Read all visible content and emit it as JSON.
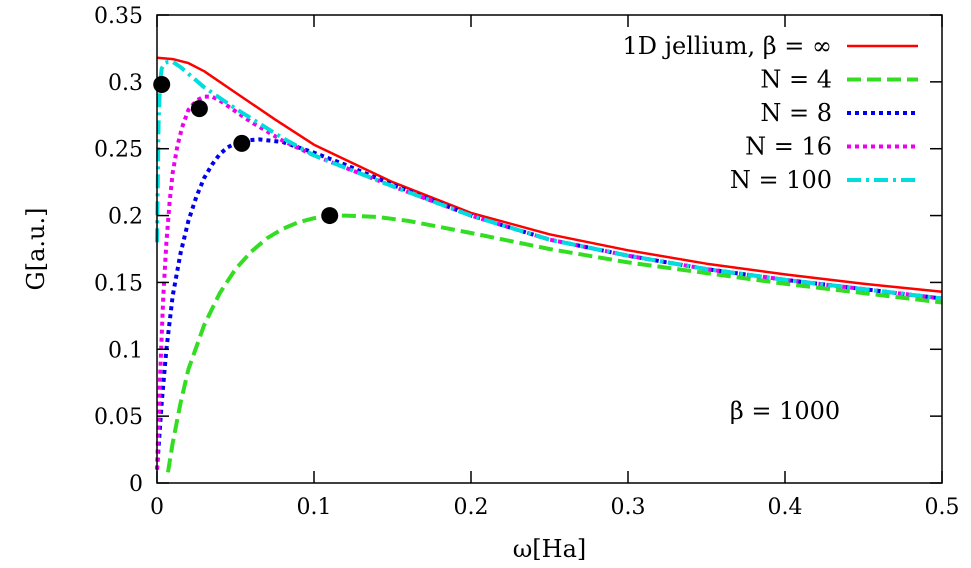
{
  "chart_data": {
    "type": "line",
    "xlabel": "ω[Ha]",
    "ylabel": "G[a.u.]",
    "xlim": [
      0,
      0.5
    ],
    "ylim": [
      0,
      0.35
    ],
    "xticks": [
      "0",
      "0.1",
      "0.2",
      "0.3",
      "0.4",
      "0.5"
    ],
    "xtick_values": [
      0,
      0.1,
      0.2,
      0.3,
      0.4,
      0.5
    ],
    "yticks": [
      "0",
      "0.05",
      "0.1",
      "0.15",
      "0.2",
      "0.25",
      "0.3",
      "0.35"
    ],
    "ytick_values": [
      0,
      0.05,
      0.1,
      0.15,
      0.2,
      0.25,
      0.3,
      0.35
    ],
    "grid": false,
    "legend_position": "top-right",
    "annotation": "β = 1000",
    "series": [
      {
        "name": "1D jellium, β = ∞",
        "color": "#ff0000",
        "style": "solid",
        "x": [
          0,
          0.01,
          0.02,
          0.03,
          0.05,
          0.075,
          0.1,
          0.15,
          0.2,
          0.25,
          0.3,
          0.35,
          0.4,
          0.45,
          0.5
        ],
        "y": [
          0.318,
          0.317,
          0.314,
          0.308,
          0.292,
          0.272,
          0.253,
          0.225,
          0.202,
          0.186,
          0.174,
          0.164,
          0.156,
          0.149,
          0.143
        ]
      },
      {
        "name": "N = 4",
        "color": "#33dd22",
        "style": "dashed",
        "x": [
          0.007,
          0.01,
          0.015,
          0.02,
          0.03,
          0.04,
          0.05,
          0.06,
          0.07,
          0.08,
          0.09,
          0.1,
          0.11,
          0.12,
          0.14,
          0.16,
          0.2,
          0.25,
          0.3,
          0.35,
          0.4,
          0.45,
          0.5
        ],
        "y": [
          0.008,
          0.03,
          0.06,
          0.085,
          0.118,
          0.142,
          0.16,
          0.173,
          0.183,
          0.19,
          0.195,
          0.198,
          0.2,
          0.2,
          0.199,
          0.196,
          0.187,
          0.175,
          0.165,
          0.157,
          0.149,
          0.142,
          0.135
        ]
      },
      {
        "name": "N = 8",
        "color": "#0000ee",
        "style": "dotted",
        "x": [
          0.0,
          0.003,
          0.006,
          0.01,
          0.015,
          0.02,
          0.025,
          0.03,
          0.035,
          0.04,
          0.045,
          0.05,
          0.055,
          0.065,
          0.08,
          0.1,
          0.12,
          0.15,
          0.2,
          0.25,
          0.3,
          0.35,
          0.4,
          0.45,
          0.5
        ],
        "y": [
          0.01,
          0.06,
          0.1,
          0.14,
          0.172,
          0.196,
          0.214,
          0.228,
          0.238,
          0.246,
          0.251,
          0.254,
          0.256,
          0.257,
          0.255,
          0.247,
          0.238,
          0.223,
          0.2,
          0.182,
          0.17,
          0.16,
          0.152,
          0.145,
          0.138
        ]
      },
      {
        "name": "N = 16",
        "color": "#ee00ee",
        "style": "dotted",
        "x": [
          0.0,
          0.002,
          0.004,
          0.006,
          0.008,
          0.01,
          0.013,
          0.016,
          0.02,
          0.025,
          0.03,
          0.035,
          0.04,
          0.05,
          0.06,
          0.08,
          0.1,
          0.15,
          0.2,
          0.25,
          0.3,
          0.35,
          0.4,
          0.45,
          0.5
        ],
        "y": [
          0.01,
          0.08,
          0.14,
          0.18,
          0.21,
          0.232,
          0.252,
          0.266,
          0.279,
          0.286,
          0.289,
          0.289,
          0.286,
          0.278,
          0.27,
          0.256,
          0.245,
          0.222,
          0.2,
          0.182,
          0.17,
          0.16,
          0.152,
          0.145,
          0.138
        ]
      },
      {
        "name": "N = 100",
        "color": "#00dddd",
        "style": "dashdot",
        "x": [
          0.0,
          0.001,
          0.002,
          0.003,
          0.005,
          0.007,
          0.01,
          0.015,
          0.02,
          0.03,
          0.05,
          0.08,
          0.1,
          0.15,
          0.2,
          0.25,
          0.3,
          0.35,
          0.4,
          0.45,
          0.5
        ],
        "y": [
          0.18,
          0.27,
          0.3,
          0.31,
          0.314,
          0.315,
          0.315,
          0.311,
          0.306,
          0.296,
          0.28,
          0.258,
          0.245,
          0.222,
          0.2,
          0.182,
          0.17,
          0.16,
          0.152,
          0.145,
          0.138
        ]
      }
    ],
    "markers": [
      {
        "x": 0.003,
        "y": 0.298
      },
      {
        "x": 0.027,
        "y": 0.28
      },
      {
        "x": 0.054,
        "y": 0.254
      },
      {
        "x": 0.11,
        "y": 0.2
      }
    ]
  }
}
